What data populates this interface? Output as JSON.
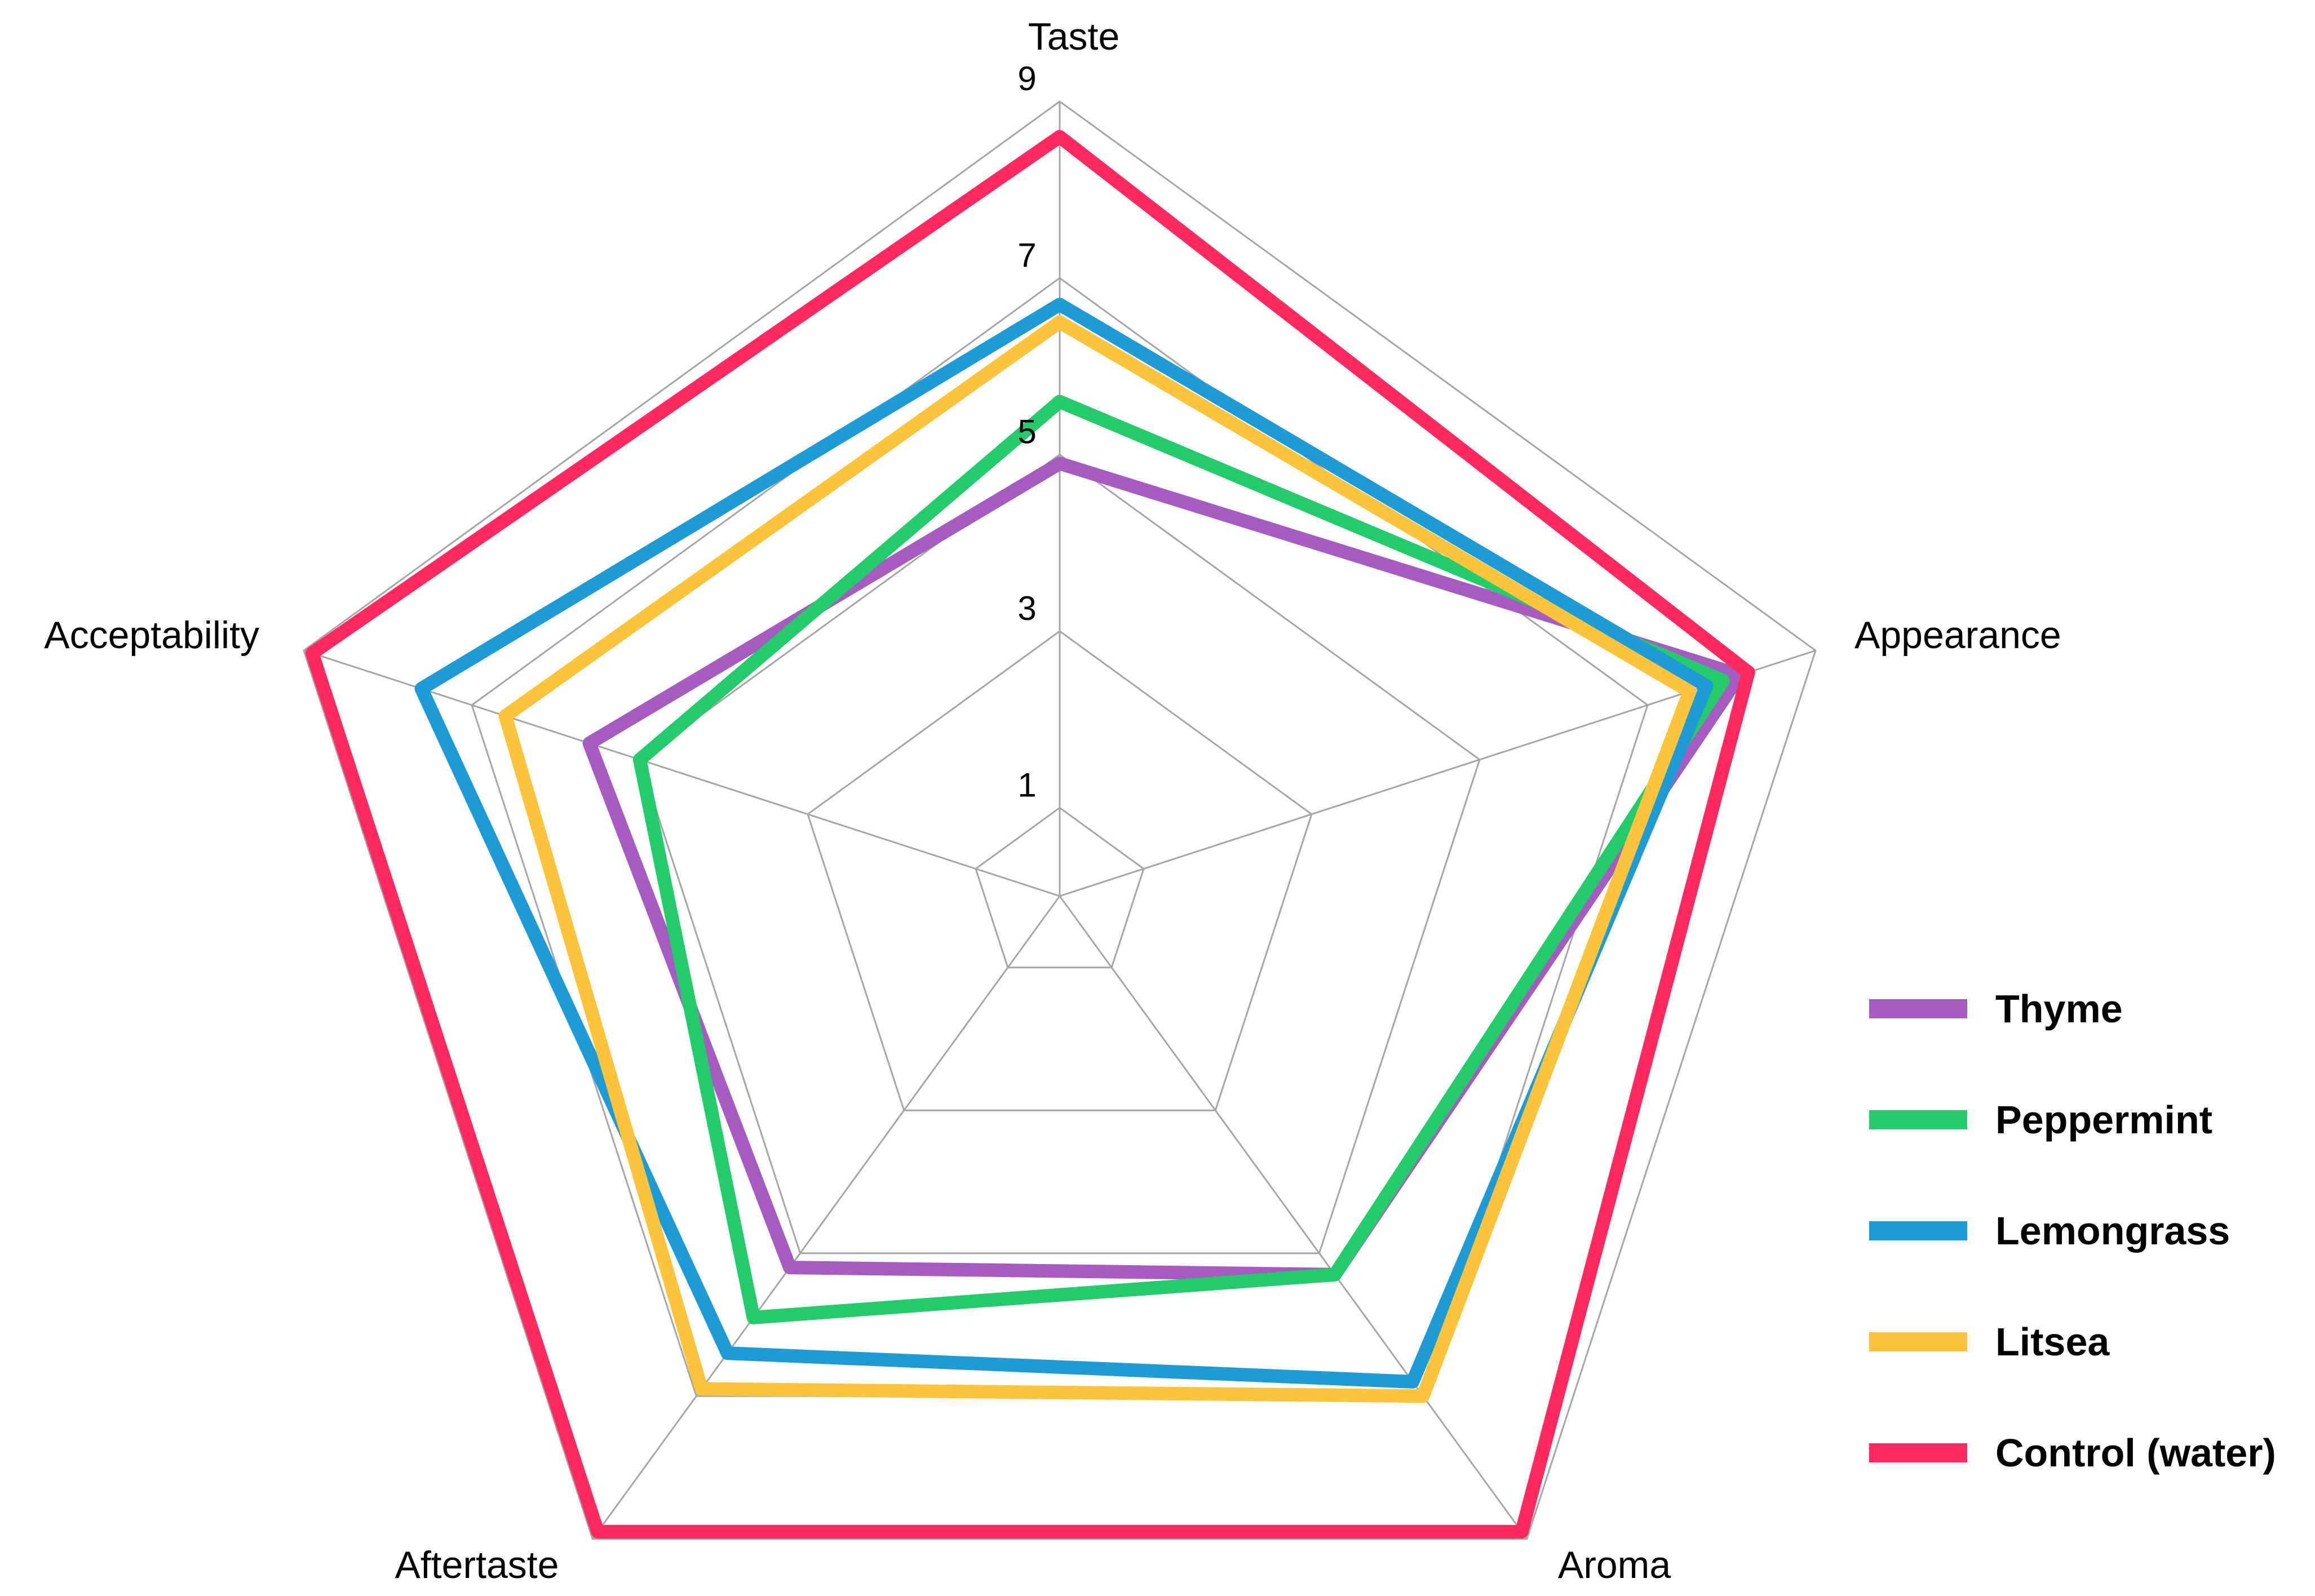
{
  "chart_data": {
    "type": "radar",
    "axes": [
      "Taste",
      "Appearance",
      "Aroma",
      "Aftertaste",
      "Acceptability"
    ],
    "ticks": [
      1,
      3,
      5,
      7,
      9
    ],
    "range": [
      0,
      9
    ],
    "grid": true,
    "legend_position": "right",
    "series": [
      {
        "name": "Thyme",
        "color": "#a55bbf",
        "values": [
          4.9,
          8.1,
          5.3,
          5.2,
          5.6
        ]
      },
      {
        "name": "Peppermint",
        "color": "#23cb6b",
        "values": [
          5.6,
          7.9,
          5.3,
          5.9,
          5.0
        ]
      },
      {
        "name": "Lemongrass",
        "color": "#1e9ad6",
        "values": [
          6.7,
          7.7,
          6.8,
          6.4,
          7.6
        ]
      },
      {
        "name": "Litsea",
        "color": "#fcc43d",
        "values": [
          6.5,
          7.5,
          7.0,
          6.9,
          6.6
        ]
      },
      {
        "name": "Control (water)",
        "color": "#ff2a5f",
        "values": [
          8.6,
          8.2,
          8.9,
          8.9,
          8.9
        ]
      }
    ]
  }
}
